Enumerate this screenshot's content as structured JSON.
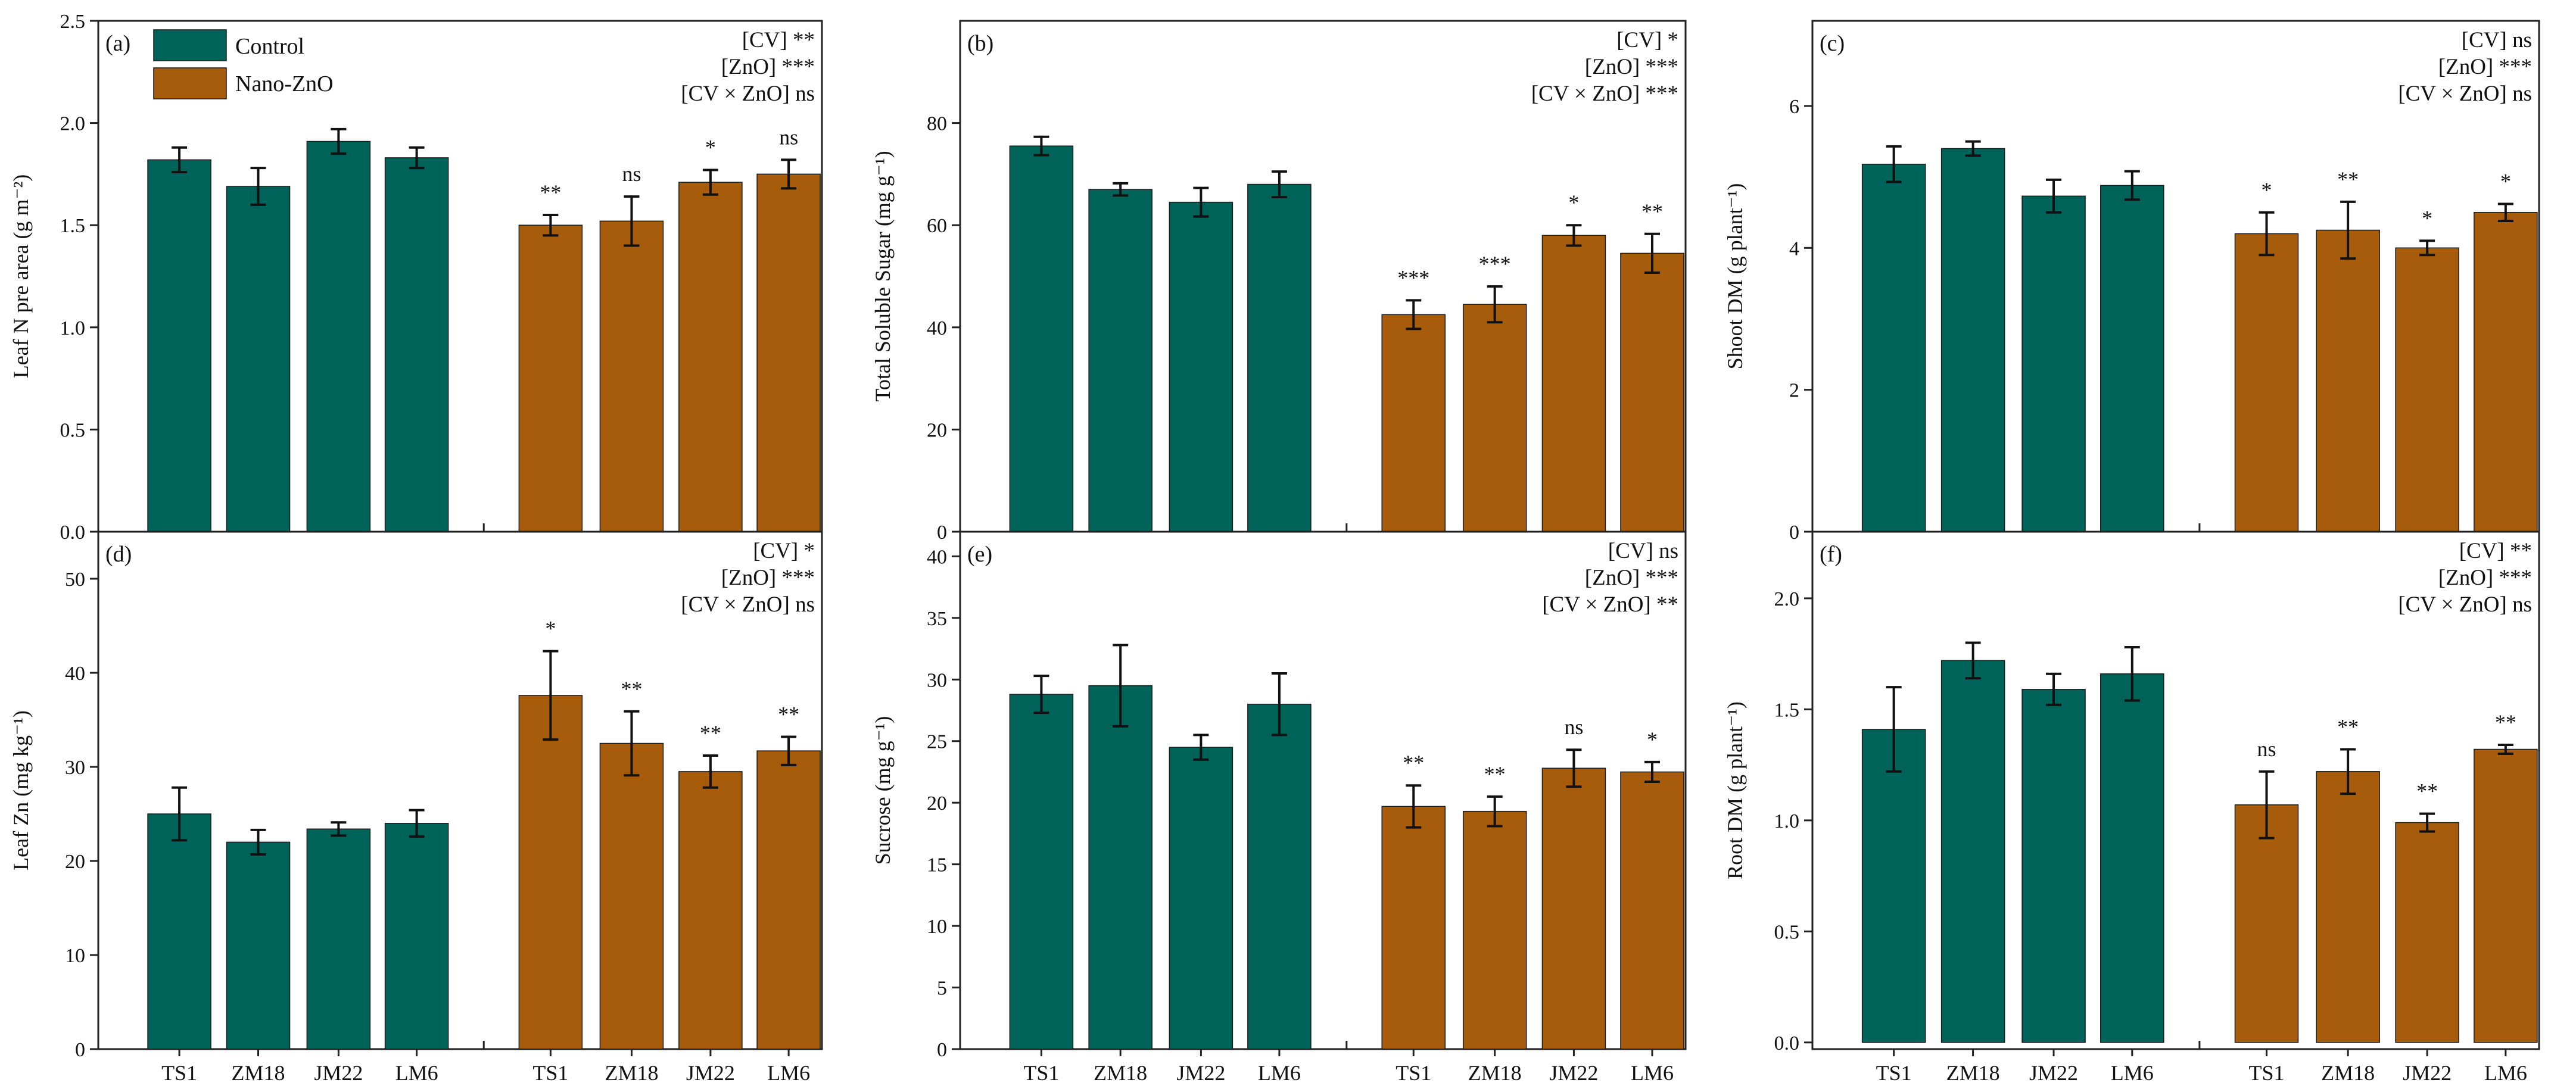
{
  "colors": {
    "control": "#006359",
    "nano": "#A65C0A"
  },
  "legend": {
    "control_label": "Control",
    "nano_label": "Nano-ZnO"
  },
  "chart_data": [
    {
      "id": "a",
      "type": "bar",
      "panel_label": "(a)",
      "ylabel": "Leaf N pre area (g m⁻²)",
      "ylim": [
        0,
        2.5
      ],
      "yticks": [
        "0.0",
        "0.5",
        "1.0",
        "1.5",
        "2.0",
        "2.5"
      ],
      "categories": [
        "TS1",
        "ZM18",
        "JM22",
        "LM6"
      ],
      "series": [
        {
          "name": "Control",
          "values": [
            1.82,
            1.69,
            1.91,
            1.83
          ],
          "errors": [
            0.06,
            0.09,
            0.06,
            0.05
          ]
        },
        {
          "name": "Nano-ZnO",
          "values": [
            1.5,
            1.52,
            1.71,
            1.75
          ],
          "errors": [
            0.05,
            0.12,
            0.06,
            0.07
          ],
          "significance": [
            "**",
            "ns",
            "*",
            "ns"
          ]
        }
      ],
      "stats": [
        {
          "label": "[CV]",
          "sig": "**"
        },
        {
          "label": "[ZnO]",
          "sig": "***"
        },
        {
          "label": "[CV × ZnO]",
          "sig": "ns"
        }
      ]
    },
    {
      "id": "b",
      "type": "bar",
      "panel_label": "(b)",
      "ylabel": "Total Soluble Sugar (mg g⁻¹)",
      "ylim": [
        0,
        100
      ],
      "yticks": [
        "0",
        "20",
        "40",
        "60",
        "80"
      ],
      "categories": [
        "TS1",
        "ZM18",
        "JM22",
        "LM6"
      ],
      "series": [
        {
          "name": "Control",
          "values": [
            75.5,
            67.0,
            64.5,
            68.0
          ],
          "errors": [
            1.8,
            1.2,
            2.8,
            2.5
          ]
        },
        {
          "name": "Nano-ZnO",
          "values": [
            42.5,
            44.5,
            58.0,
            54.5
          ],
          "errors": [
            2.8,
            3.5,
            2.0,
            3.8
          ],
          "significance": [
            "***",
            "***",
            "*",
            "**"
          ]
        }
      ],
      "stats": [
        {
          "label": "[CV]",
          "sig": "*"
        },
        {
          "label": "[ZnO]",
          "sig": "***"
        },
        {
          "label": "[CV × ZnO]",
          "sig": "***"
        }
      ]
    },
    {
      "id": "c",
      "type": "bar",
      "panel_label": "(c)",
      "ylabel": "Shoot DM (g plant⁻¹)",
      "ylim": [
        0,
        7.2
      ],
      "yticks": [
        "0",
        "2",
        "4",
        "6"
      ],
      "categories": [
        "TS1",
        "ZM18",
        "JM22",
        "LM6"
      ],
      "series": [
        {
          "name": "Control",
          "values": [
            5.18,
            5.4,
            4.73,
            4.88
          ],
          "errors": [
            0.25,
            0.1,
            0.23,
            0.2
          ]
        },
        {
          "name": "Nano-ZnO",
          "values": [
            4.2,
            4.25,
            4.0,
            4.5
          ],
          "errors": [
            0.3,
            0.4,
            0.1,
            0.12
          ],
          "significance": [
            "*",
            "**",
            "*",
            "*"
          ]
        }
      ],
      "stats": [
        {
          "label": "[CV]",
          "sig": "ns"
        },
        {
          "label": "[ZnO]",
          "sig": "***"
        },
        {
          "label": "[CV × ZnO]",
          "sig": "ns"
        }
      ]
    },
    {
      "id": "d",
      "type": "bar",
      "panel_label": "(d)",
      "ylabel": "Leaf Zn (mg kg⁻¹)",
      "ylim": [
        0,
        55
      ],
      "yticks": [
        "0",
        "10",
        "20",
        "30",
        "40",
        "50"
      ],
      "categories": [
        "TS1",
        "ZM18",
        "JM22",
        "LM6"
      ],
      "series": [
        {
          "name": "Control",
          "values": [
            25.0,
            22.0,
            23.4,
            24.0
          ],
          "errors": [
            2.8,
            1.3,
            0.7,
            1.4
          ]
        },
        {
          "name": "Nano-ZnO",
          "values": [
            37.6,
            32.5,
            29.5,
            31.7
          ],
          "errors": [
            4.7,
            3.4,
            1.7,
            1.5
          ],
          "significance": [
            "*",
            "**",
            "**",
            "**"
          ]
        }
      ],
      "stats": [
        {
          "label": "[CV]",
          "sig": "*"
        },
        {
          "label": "[ZnO]",
          "sig": "***"
        },
        {
          "label": "[CV × ZnO]",
          "sig": "ns"
        }
      ]
    },
    {
      "id": "e",
      "type": "bar",
      "panel_label": "(e)",
      "ylabel": "Sucrose (mg g⁻¹)",
      "ylim": [
        0,
        42
      ],
      "yticks": [
        "0",
        "5",
        "10",
        "15",
        "20",
        "25",
        "30",
        "35",
        "40"
      ],
      "categories": [
        "TS1",
        "ZM18",
        "JM22",
        "LM6"
      ],
      "series": [
        {
          "name": "Control",
          "values": [
            28.8,
            29.5,
            24.5,
            28.0
          ],
          "errors": [
            1.5,
            3.3,
            1.0,
            2.5
          ]
        },
        {
          "name": "Nano-ZnO",
          "values": [
            19.7,
            19.3,
            22.8,
            22.5
          ],
          "errors": [
            1.7,
            1.2,
            1.5,
            0.8
          ],
          "significance": [
            "**",
            "**",
            "ns",
            "*"
          ]
        }
      ],
      "stats": [
        {
          "label": "[CV]",
          "sig": "ns"
        },
        {
          "label": "[ZnO]",
          "sig": "***"
        },
        {
          "label": "[CV × ZnO]",
          "sig": "**"
        }
      ]
    },
    {
      "id": "f",
      "type": "bar",
      "panel_label": "(f)",
      "ylabel": "Root DM (g plant⁻¹)",
      "ylim": [
        -0.03,
        2.3
      ],
      "yticks": [
        "0.0",
        "0.5",
        "1.0",
        "1.5",
        "2.0"
      ],
      "categories": [
        "TS1",
        "ZM18",
        "JM22",
        "LM6"
      ],
      "series": [
        {
          "name": "Control",
          "values": [
            1.41,
            1.72,
            1.59,
            1.66
          ],
          "errors": [
            0.19,
            0.08,
            0.07,
            0.12
          ]
        },
        {
          "name": "Nano-ZnO",
          "values": [
            1.07,
            1.22,
            0.99,
            1.32
          ],
          "errors": [
            0.15,
            0.1,
            0.04,
            0.02
          ],
          "significance": [
            "ns",
            "**",
            "**",
            "**"
          ]
        }
      ],
      "stats": [
        {
          "label": "[CV]",
          "sig": "**"
        },
        {
          "label": "[ZnO]",
          "sig": "***"
        },
        {
          "label": "[CV × ZnO]",
          "sig": "ns"
        }
      ]
    }
  ]
}
